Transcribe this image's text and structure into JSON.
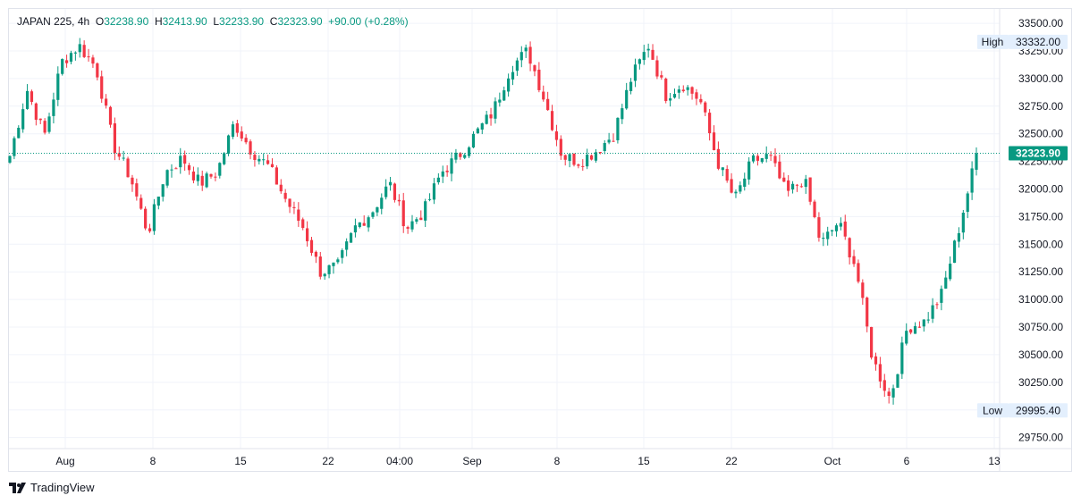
{
  "header": {
    "symbol": "JAPAN 225",
    "interval": "4h",
    "open_label": "O",
    "open": "32238.90",
    "high_label": "H",
    "high": "32413.90",
    "low_label": "L",
    "low": "32233.90",
    "close_label": "C",
    "close": "32323.90",
    "change": "+90.00 (+0.28%)"
  },
  "brand": {
    "name": "TradingView"
  },
  "colors": {
    "up": "#089981",
    "down": "#f23645",
    "grid": "#f0f3fa",
    "price_line": "#089981"
  },
  "chart_data": {
    "type": "candlestick",
    "y_ticks": [
      "33500.00",
      "33250.00",
      "33000.00",
      "32750.00",
      "32500.00",
      "32250.00",
      "32000.00",
      "31750.00",
      "31500.00",
      "31250.00",
      "31000.00",
      "30750.00",
      "30500.00",
      "30250.00",
      "30000.00",
      "29750.00"
    ],
    "ylim": [
      29650,
      33630
    ],
    "x_ticks": [
      "Aug",
      "8",
      "15",
      "22",
      "04:00",
      "Sep",
      "8",
      "15",
      "22",
      "Oct",
      "6",
      "13"
    ],
    "high_marker": {
      "label": "High",
      "value": "33332.00"
    },
    "low_marker": {
      "label": "Low",
      "value": "29995.40"
    },
    "last_price": {
      "value": "32323.90"
    },
    "anchors": [
      {
        "x": "Jul 25",
        "close": 32300
      },
      {
        "x": "Jul 26",
        "close": 32900
      },
      {
        "x": "Jul 27",
        "close": 32480
      },
      {
        "x": "Jul 28",
        "close": 33150
      },
      {
        "x": "Jul 31",
        "close": 33300
      },
      {
        "x": "Aug 1",
        "close": 33100
      },
      {
        "x": "Aug 2",
        "close": 32400
      },
      {
        "x": "Aug 3",
        "close": 32100
      },
      {
        "x": "Aug 4",
        "close": 31600
      },
      {
        "x": "Aug 7",
        "close": 32150
      },
      {
        "x": "Aug 8",
        "close": 32280
      },
      {
        "x": "Aug 9",
        "close": 32050
      },
      {
        "x": "Aug 10",
        "close": 32150
      },
      {
        "x": "Aug 11",
        "close": 32600
      },
      {
        "x": "Aug 14",
        "close": 32350
      },
      {
        "x": "Aug 15",
        "close": 32200
      },
      {
        "x": "Aug 16",
        "close": 31900
      },
      {
        "x": "Aug 17",
        "close": 31650
      },
      {
        "x": "Aug 18",
        "close": 31250
      },
      {
        "x": "Aug 21",
        "close": 31300
      },
      {
        "x": "Aug 22",
        "close": 31650
      },
      {
        "x": "Aug 23",
        "close": 31800
      },
      {
        "x": "Aug 24",
        "close": 32050
      },
      {
        "x": "Aug 25",
        "close": 31650
      },
      {
        "x": "Aug 28",
        "close": 31800
      },
      {
        "x": "Aug 29",
        "close": 32150
      },
      {
        "x": "Aug 30",
        "close": 32300
      },
      {
        "x": "Aug 31",
        "close": 32500
      },
      {
        "x": "Sep 1",
        "close": 32700
      },
      {
        "x": "Sep 4",
        "close": 33100
      },
      {
        "x": "Sep 5",
        "close": 33250
      },
      {
        "x": "Sep 6",
        "close": 32800
      },
      {
        "x": "Sep 7",
        "close": 32300
      },
      {
        "x": "Sep 8",
        "close": 32250
      },
      {
        "x": "Sep 11",
        "close": 32350
      },
      {
        "x": "Sep 12",
        "close": 32500
      },
      {
        "x": "Sep 13",
        "close": 33000
      },
      {
        "x": "Sep 14",
        "close": 33300
      },
      {
        "x": "Sep 15",
        "close": 32850
      },
      {
        "x": "Sep 18",
        "close": 32950
      },
      {
        "x": "Sep 19",
        "close": 32800
      },
      {
        "x": "Sep 20",
        "close": 32250
      },
      {
        "x": "Sep 21",
        "close": 31900
      },
      {
        "x": "Sep 22",
        "close": 32250
      },
      {
        "x": "Sep 25",
        "close": 32300
      },
      {
        "x": "Sep 26",
        "close": 31950
      },
      {
        "x": "Sep 27",
        "close": 32100
      },
      {
        "x": "Sep 28",
        "close": 31500
      },
      {
        "x": "Sep 29",
        "close": 31700
      },
      {
        "x": "Oct 2",
        "close": 31300
      },
      {
        "x": "Oct 3",
        "close": 30450
      },
      {
        "x": "Oct 4",
        "close": 30100
      },
      {
        "x": "Oct 5",
        "close": 30750
      },
      {
        "x": "Oct 6",
        "close": 30800
      },
      {
        "x": "Oct 9",
        "close": 31050
      },
      {
        "x": "Oct 10",
        "close": 31650
      },
      {
        "x": "Oct 11",
        "close": 32300
      }
    ]
  }
}
